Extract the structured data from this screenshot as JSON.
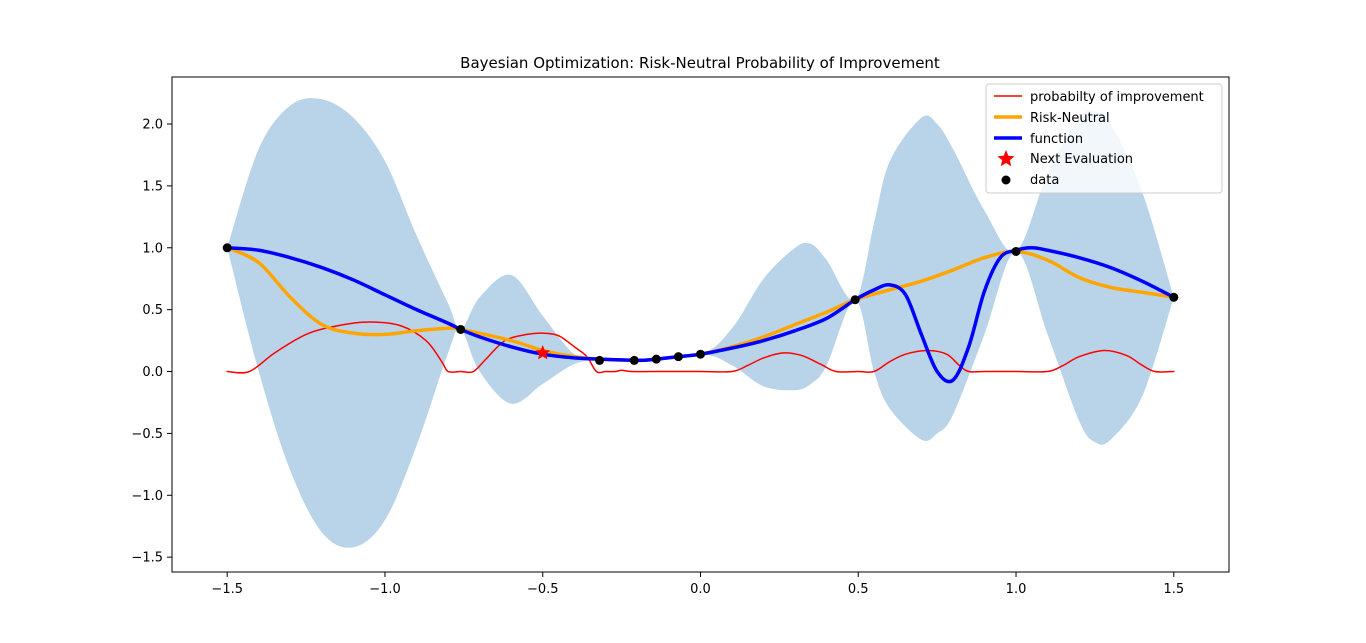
{
  "chart_data": {
    "type": "line",
    "title": "Bayesian Optimization: Risk-Neutral Probability of Improvement",
    "xlabel": "",
    "ylabel": "",
    "xlim": [
      -1.675,
      1.675
    ],
    "ylim": [
      -1.62,
      2.38
    ],
    "xticks": [
      -1.5,
      -1.0,
      -0.5,
      0.0,
      0.5,
      1.0,
      1.5
    ],
    "xtick_labels": [
      "−1.5",
      "−1.0",
      "−0.5",
      "0.0",
      "0.5",
      "1.0",
      "1.5"
    ],
    "yticks": [
      -1.5,
      -1.0,
      -0.5,
      0.0,
      0.5,
      1.0,
      1.5,
      2.0
    ],
    "ytick_labels": [
      "−1.5",
      "−1.0",
      "−0.5",
      "0.0",
      "0.5",
      "1.0",
      "1.5",
      "2.0"
    ],
    "grid": false,
    "legend_position": "top-right",
    "colors": {
      "probability": "#ff0000",
      "risk_neutral": "#ffa500",
      "function": "#0000ff",
      "next_evaluation": "#ff0000",
      "data": "#000000",
      "band": "#b9d4e8"
    },
    "band": {
      "name": "",
      "x": [
        -1.5,
        -1.4,
        -1.3,
        -1.2,
        -1.1,
        -1.0,
        -0.9,
        -0.8,
        -0.76,
        -0.7,
        -0.6,
        -0.5,
        -0.4,
        -0.32,
        -0.2,
        0.0,
        0.1,
        0.2,
        0.3,
        0.35,
        0.4,
        0.49,
        0.55,
        0.6,
        0.7,
        0.75,
        0.8,
        0.9,
        1.0,
        1.1,
        1.2,
        1.25,
        1.3,
        1.4,
        1.5
      ],
      "upper": [
        1.0,
        1.8,
        2.15,
        2.2,
        2.05,
        1.7,
        1.1,
        0.55,
        0.34,
        0.6,
        0.78,
        0.45,
        0.14,
        0.09,
        0.1,
        0.14,
        0.35,
        0.75,
        1.0,
        1.03,
        0.9,
        0.58,
        1.2,
        1.7,
        2.05,
        2.0,
        1.8,
        1.3,
        0.97,
        1.6,
        2.05,
        2.1,
        2.0,
        1.45,
        0.6
      ],
      "lower": [
        1.0,
        0.0,
        -0.8,
        -1.3,
        -1.42,
        -1.2,
        -0.6,
        0.15,
        0.34,
        0.0,
        -0.26,
        -0.1,
        0.06,
        0.09,
        0.08,
        0.14,
        0.05,
        -0.12,
        -0.15,
        -0.1,
        0.05,
        0.58,
        0.0,
        -0.3,
        -0.55,
        -0.5,
        -0.35,
        0.3,
        0.97,
        0.3,
        -0.4,
        -0.57,
        -0.55,
        -0.2,
        0.6
      ]
    },
    "series": [
      {
        "name": "probabilty of improvement",
        "x": [
          -1.5,
          -1.43,
          -1.35,
          -1.25,
          -1.15,
          -1.05,
          -0.95,
          -0.87,
          -0.82,
          -0.8,
          -0.76,
          -0.72,
          -0.68,
          -0.62,
          -0.55,
          -0.5,
          -0.45,
          -0.4,
          -0.36,
          -0.33,
          -0.3,
          -0.27,
          -0.25,
          -0.22,
          -0.15,
          0.0,
          0.1,
          0.15,
          0.2,
          0.26,
          0.32,
          0.38,
          0.43,
          0.5,
          0.55,
          0.6,
          0.65,
          0.72,
          0.78,
          0.82,
          0.85,
          0.9,
          1.0,
          1.1,
          1.15,
          1.2,
          1.28,
          1.35,
          1.4,
          1.44,
          1.5
        ],
        "y": [
          0.0,
          0.0,
          0.15,
          0.3,
          0.37,
          0.4,
          0.37,
          0.25,
          0.08,
          0.0,
          0.0,
          0.0,
          0.1,
          0.25,
          0.3,
          0.31,
          0.29,
          0.2,
          0.12,
          0.0,
          0.0,
          0.0,
          0.01,
          0.0,
          0.0,
          0.0,
          0.0,
          0.05,
          0.11,
          0.15,
          0.13,
          0.06,
          0.0,
          0.0,
          0.0,
          0.08,
          0.14,
          0.17,
          0.14,
          0.05,
          0.0,
          0.0,
          0.0,
          0.0,
          0.05,
          0.12,
          0.17,
          0.13,
          0.05,
          0.0,
          0.0
        ]
      },
      {
        "name": "Risk-Neutral",
        "x": [
          -1.5,
          -1.4,
          -1.3,
          -1.2,
          -1.1,
          -1.0,
          -0.9,
          -0.8,
          -0.76,
          -0.6,
          -0.5,
          -0.4,
          -0.32,
          -0.2,
          -0.14,
          -0.07,
          0.0,
          0.1,
          0.2,
          0.3,
          0.4,
          0.49,
          0.6,
          0.7,
          0.8,
          0.9,
          1.0,
          1.1,
          1.2,
          1.3,
          1.4,
          1.5
        ],
        "y": [
          1.0,
          0.88,
          0.6,
          0.38,
          0.31,
          0.3,
          0.33,
          0.35,
          0.34,
          0.25,
          0.17,
          0.12,
          0.1,
          0.09,
          0.1,
          0.12,
          0.14,
          0.2,
          0.28,
          0.38,
          0.48,
          0.58,
          0.66,
          0.73,
          0.82,
          0.92,
          0.97,
          0.9,
          0.76,
          0.68,
          0.64,
          0.6
        ]
      },
      {
        "name": "function",
        "x": [
          -1.5,
          -1.4,
          -1.3,
          -1.2,
          -1.1,
          -1.0,
          -0.9,
          -0.8,
          -0.76,
          -0.7,
          -0.6,
          -0.5,
          -0.4,
          -0.32,
          -0.2,
          -0.14,
          -0.07,
          0.0,
          0.1,
          0.2,
          0.3,
          0.4,
          0.49,
          0.55,
          0.6,
          0.65,
          0.7,
          0.75,
          0.8,
          0.85,
          0.9,
          0.95,
          1.0,
          1.05,
          1.1,
          1.2,
          1.3,
          1.4,
          1.5
        ],
        "y": [
          1.0,
          0.98,
          0.92,
          0.84,
          0.74,
          0.62,
          0.5,
          0.39,
          0.34,
          0.28,
          0.2,
          0.14,
          0.11,
          0.1,
          0.09,
          0.1,
          0.12,
          0.14,
          0.19,
          0.25,
          0.33,
          0.43,
          0.58,
          0.66,
          0.7,
          0.62,
          0.3,
          0.0,
          -0.07,
          0.2,
          0.65,
          0.92,
          0.98,
          1.0,
          0.98,
          0.92,
          0.84,
          0.73,
          0.6
        ]
      }
    ],
    "next_evaluation": {
      "name": "Next Evaluation",
      "x": -0.5,
      "y": 0.15
    },
    "data_points": {
      "name": "data",
      "x": [
        -1.5,
        -0.76,
        -0.32,
        -0.21,
        -0.14,
        -0.07,
        0.0,
        0.49,
        1.0,
        1.5
      ],
      "y": [
        1.0,
        0.34,
        0.09,
        0.09,
        0.1,
        0.12,
        0.14,
        0.58,
        0.97,
        0.6
      ]
    },
    "legend": [
      "probabilty of improvement",
      "Risk-Neutral",
      "function",
      "Next Evaluation",
      "data"
    ]
  }
}
